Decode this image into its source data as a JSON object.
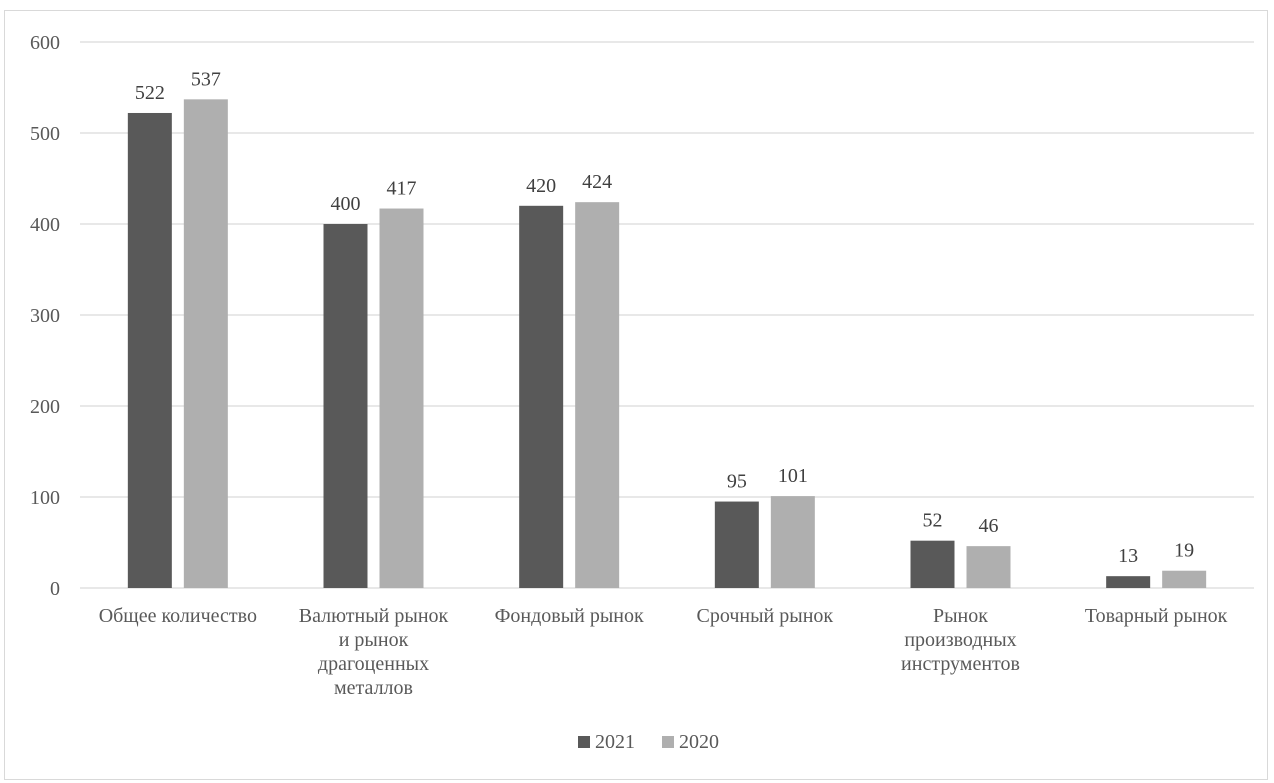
{
  "chart_data": {
    "type": "bar",
    "title": "",
    "xlabel": "",
    "ylabel": "",
    "ylim": [
      0,
      600
    ],
    "yticks": [
      0,
      100,
      200,
      300,
      400,
      500,
      600
    ],
    "grid": true,
    "legend_position": "bottom",
    "categories": [
      [
        "Общее количество"
      ],
      [
        "Валютный рынок",
        "и рынок",
        "драгоценных",
        "металлов"
      ],
      [
        "Фондовый рынок"
      ],
      [
        "Срочный рынок"
      ],
      [
        "Рынок",
        "производных",
        "инструментов"
      ],
      [
        "Товарный рынок"
      ]
    ],
    "series": [
      {
        "name": "2021",
        "color": "#595959",
        "values": [
          522,
          400,
          420,
          95,
          52,
          13
        ]
      },
      {
        "name": "2020",
        "color": "#afafaf",
        "values": [
          537,
          417,
          424,
          101,
          46,
          19
        ]
      }
    ]
  }
}
